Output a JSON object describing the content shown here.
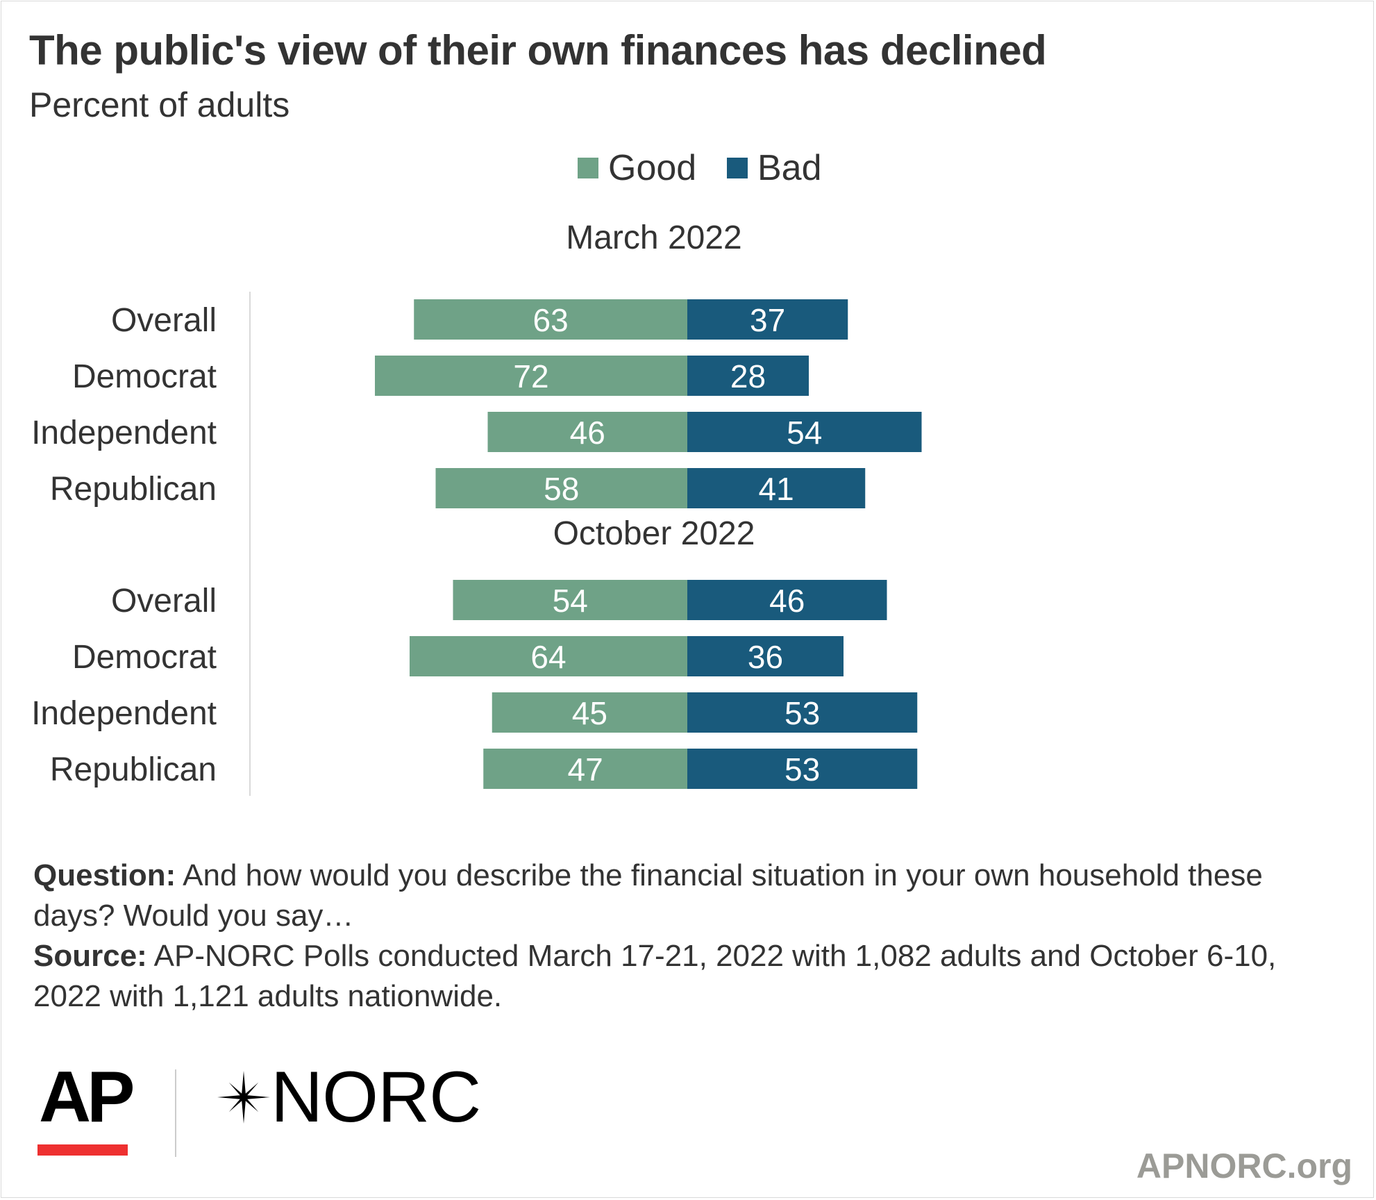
{
  "title": "The public's view of their own finances has declined",
  "subtitle": "Percent of adults",
  "legend": [
    {
      "label": "Good",
      "color": "#6fa287"
    },
    {
      "label": "Bad",
      "color": "#195a7c"
    }
  ],
  "chart_data": {
    "type": "bar",
    "orientation": "horizontal-diverging",
    "categories": [
      "Overall",
      "Democrat",
      "Independent",
      "Republican"
    ],
    "groups": [
      {
        "label": "March 2022",
        "good": [
          63,
          72,
          46,
          58
        ],
        "bad": [
          37,
          28,
          54,
          41
        ]
      },
      {
        "label": "October 2022",
        "good": [
          54,
          64,
          45,
          47
        ],
        "bad": [
          46,
          36,
          53,
          53
        ]
      }
    ],
    "series": [
      {
        "name": "Good",
        "color": "#6fa287"
      },
      {
        "name": "Bad",
        "color": "#195a7c"
      }
    ],
    "legend_position": "top-center",
    "grid": false
  },
  "notes": {
    "question_label": "Question:",
    "question_text": "And how would you describe the financial situation in your own household these days? Would you say…",
    "source_label": "Source:",
    "source_text": "AP-NORC Polls conducted March 17-21, 2022 with 1,082 adults and October 6-10, 2022 with 1,121 adults nationwide."
  },
  "branding": {
    "ap_logo": "AP",
    "norc_logo": "NORC",
    "norc_icon": "star-icon",
    "site": "APNORC.org"
  }
}
